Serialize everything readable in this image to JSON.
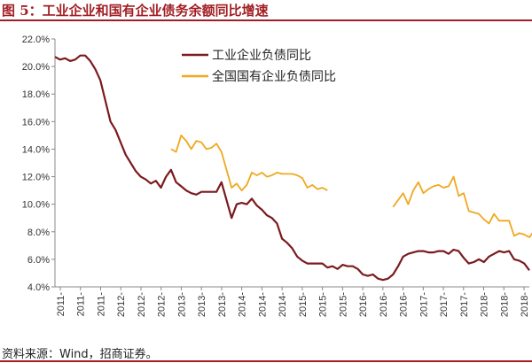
{
  "header": {
    "title": "图 5：工业企业和国有企业债务余额同比增速"
  },
  "footer": {
    "source": "资料来源：Wind，招商证券。"
  },
  "chart_data": {
    "type": "line",
    "ylim": [
      4.0,
      22.0
    ],
    "yticks": [
      "4.0%",
      "6.0%",
      "8.0%",
      "10.0%",
      "12.0%",
      "14.0%",
      "16.0%",
      "18.0%",
      "20.0%",
      "22.0%"
    ],
    "ytick_values": [
      4,
      6,
      8,
      10,
      12,
      14,
      16,
      18,
      20,
      22
    ],
    "x_labels": [
      "2011-",
      "2011-",
      "2011-",
      "2012-",
      "2012-",
      "2012-",
      "2013-",
      "2013-",
      "2013-",
      "2014-",
      "2014-",
      "2014-",
      "2015-",
      "2015-",
      "2015-",
      "2016-",
      "2016-",
      "2016-",
      "2017-",
      "2017-",
      "2017-",
      "2018-",
      "2018-",
      "2018-"
    ],
    "legend_position": "top-center",
    "grid": false,
    "series": [
      {
        "name": "工业企业负债同比",
        "color": "#7b1a1e",
        "values": [
          20.7,
          20.5,
          20.6,
          20.4,
          20.5,
          20.8,
          20.8,
          20.4,
          19.8,
          19.0,
          17.5,
          16.0,
          15.4,
          14.5,
          13.6,
          13.0,
          12.4,
          12.0,
          11.8,
          11.5,
          11.7,
          11.2,
          12.0,
          12.5,
          11.6,
          11.3,
          11.0,
          10.8,
          10.7,
          10.9,
          10.9,
          10.9,
          10.9,
          11.6,
          10.3,
          9.0,
          10.0,
          10.1,
          10.0,
          10.4,
          9.9,
          9.6,
          9.2,
          9.0,
          8.6,
          7.5,
          7.2,
          6.8,
          6.2,
          5.9,
          5.7,
          5.7,
          5.7,
          5.7,
          5.4,
          5.5,
          5.3,
          5.6,
          5.5,
          5.5,
          5.3,
          4.9,
          4.8,
          4.9,
          4.6,
          4.5,
          4.6,
          4.9,
          5.5,
          6.2,
          6.4,
          6.5,
          6.6,
          6.6,
          6.5,
          6.5,
          6.6,
          6.6,
          6.4,
          6.7,
          6.6,
          6.1,
          5.7,
          5.8,
          6.0,
          5.8,
          6.2,
          6.4,
          6.6,
          6.5,
          6.6,
          6.0,
          5.9,
          5.7,
          5.2
        ]
      },
      {
        "name": "全国国有企业负债同比",
        "color": "#f0a81e",
        "values": [
          null,
          null,
          null,
          null,
          null,
          null,
          null,
          null,
          null,
          null,
          null,
          null,
          null,
          null,
          null,
          null,
          null,
          null,
          null,
          null,
          null,
          null,
          null,
          14.0,
          13.8,
          15.0,
          14.6,
          14.0,
          14.6,
          14.5,
          14.0,
          14.1,
          14.4,
          13.8,
          12.5,
          11.2,
          11.5,
          11.0,
          11.4,
          12.3,
          12.1,
          12.3,
          12.0,
          12.1,
          12.3,
          12.2,
          12.2,
          12.2,
          12.1,
          11.9,
          11.2,
          11.4,
          11.1,
          11.2,
          11.0,
          null,
          null,
          null,
          null,
          null,
          null,
          null,
          null,
          null,
          null,
          null,
          null,
          9.8,
          10.3,
          10.8,
          10.0,
          11.0,
          11.6,
          10.8,
          11.1,
          11.3,
          11.4,
          11.2,
          11.3,
          12.0,
          10.6,
          10.8,
          9.5,
          9.4,
          9.3,
          8.9,
          8.6,
          9.3,
          8.8,
          8.8,
          8.8,
          7.7,
          7.9,
          7.8,
          7.6,
          8.1
        ]
      }
    ]
  }
}
